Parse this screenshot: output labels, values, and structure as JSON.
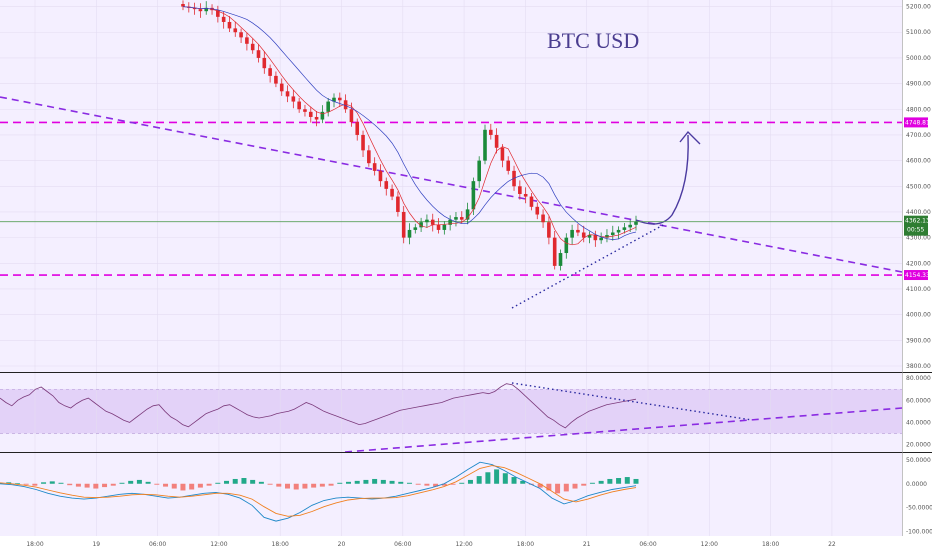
{
  "chart_data": {
    "title": "BTC USD",
    "type": "candlestick",
    "price_axis": {
      "ticks": [
        "5200.00",
        "5100.00",
        "5000.00",
        "4900.00",
        "4800.00",
        "4700.00",
        "4600.00",
        "4500.00",
        "4400.00",
        "4300.00",
        "4200.00",
        "4100.00",
        "4000.00",
        "3900.00",
        "3800.00"
      ],
      "ylim": [
        3800,
        5210
      ]
    },
    "time_axis": {
      "ticks": [
        "18:00",
        "19",
        "06:00",
        "12:00",
        "18:00",
        "20",
        "06:00",
        "12:00",
        "18:00",
        "21",
        "06:00",
        "12:00",
        "18:00",
        "22"
      ]
    },
    "levels": [
      {
        "label": "4748.81",
        "value": 4748.81,
        "color": "#e000e0",
        "style": "dashed"
      },
      {
        "label": "4154.33",
        "value": 4154.33,
        "color": "#e000e0",
        "style": "dashed"
      }
    ],
    "current_price": {
      "label": "4362.13",
      "value": 4362.13,
      "countdown": "00:55",
      "color": "#2e7d32"
    },
    "close_series": [
      5200,
      5195,
      5190,
      5182,
      5195,
      5186,
      5160,
      5140,
      5115,
      5100,
      5080,
      5055,
      5030,
      5000,
      4960,
      4930,
      4900,
      4870,
      4850,
      4830,
      4800,
      4790,
      4770,
      4760,
      4790,
      4830,
      4845,
      4835,
      4800,
      4750,
      4700,
      4640,
      4590,
      4560,
      4520,
      4490,
      4460,
      4400,
      4300,
      4330,
      4340,
      4360,
      4370,
      4350,
      4330,
      4350,
      4370,
      4380,
      4370,
      4410,
      4520,
      4600,
      4720,
      4700,
      4650,
      4600,
      4560,
      4500,
      4470,
      4460,
      4420,
      4390,
      4360,
      4300,
      4190,
      4240,
      4300,
      4330,
      4320,
      4300,
      4310,
      4290,
      4300,
      4310,
      4320,
      4330,
      4340,
      4350,
      4362
    ],
    "indicators": [
      {
        "name": "RSI",
        "ticks": [
          "80.0000",
          "60.0000",
          "40.0000",
          "20.0000"
        ],
        "band": [
          30,
          70
        ],
        "ylim": [
          15,
          82
        ],
        "values": [
          62,
          58,
          55,
          60,
          63,
          65,
          70,
          72,
          68,
          64,
          58,
          55,
          53,
          57,
          60,
          62,
          58,
          54,
          50,
          48,
          45,
          42,
          40,
          44,
          48,
          52,
          55,
          56,
          50,
          45,
          42,
          38,
          36,
          40,
          44,
          48,
          50,
          52,
          55,
          56,
          53,
          50,
          47,
          45,
          44,
          45,
          46,
          48,
          49,
          50,
          52,
          55,
          58,
          56,
          53,
          50,
          48,
          46,
          44,
          42,
          40,
          38,
          39,
          41,
          43,
          45,
          47,
          49,
          51,
          52,
          53,
          54,
          55,
          56,
          57,
          58,
          60,
          62,
          63,
          64,
          65,
          66,
          67,
          66,
          68,
          72,
          75,
          74,
          70,
          65,
          60,
          55,
          50,
          45,
          42,
          38,
          35,
          40,
          44,
          47,
          50,
          52,
          54,
          56,
          57,
          58,
          59,
          60,
          61
        ]
      },
      {
        "name": "MACD",
        "ticks": [
          "50.0000",
          "0.0000",
          "-50.0000",
          "-100.0000"
        ],
        "ylim": [
          -105,
          58
        ],
        "histogram": [
          2,
          3,
          1,
          -2,
          -4,
          3,
          5,
          2,
          -3,
          -6,
          -8,
          -10,
          -7,
          -4,
          2,
          6,
          8,
          4,
          -2,
          -6,
          -10,
          -14,
          -12,
          -8,
          -4,
          2,
          6,
          10,
          12,
          8,
          4,
          -2,
          -6,
          -10,
          -12,
          -10,
          -8,
          -6,
          -4,
          2,
          4,
          6,
          8,
          10,
          8,
          6,
          4,
          2,
          -2,
          -4,
          -6,
          -4,
          -2,
          2,
          8,
          16,
          24,
          30,
          22,
          14,
          6,
          -2,
          -8,
          -14,
          -20,
          -16,
          -10,
          -4,
          2,
          6,
          10,
          12,
          14,
          10
        ],
        "macd": [
          0,
          -2,
          -6,
          -12,
          -20,
          -26,
          -30,
          -32,
          -30,
          -26,
          -22,
          -20,
          -22,
          -26,
          -30,
          -28,
          -24,
          -20,
          -18,
          -22,
          -30,
          -45,
          -70,
          -78,
          -72,
          -60,
          -45,
          -35,
          -30,
          -28,
          -30,
          -32,
          -30,
          -26,
          -20,
          -14,
          -8,
          0,
          14,
          30,
          45,
          40,
          28,
          14,
          2,
          -10,
          -30,
          -42,
          -35,
          -25,
          -18,
          -12,
          -8,
          -4
        ],
        "signal": [
          2,
          0,
          -3,
          -7,
          -13,
          -19,
          -24,
          -28,
          -29,
          -28,
          -26,
          -23,
          -22,
          -23,
          -26,
          -28,
          -26,
          -23,
          -20,
          -20,
          -24,
          -32,
          -48,
          -62,
          -68,
          -66,
          -58,
          -48,
          -40,
          -34,
          -31,
          -30,
          -30,
          -29,
          -25,
          -19,
          -13,
          -6,
          4,
          18,
          32,
          38,
          34,
          24,
          12,
          0,
          -16,
          -32,
          -38,
          -32,
          -24,
          -17,
          -12,
          -8
        ]
      }
    ]
  }
}
